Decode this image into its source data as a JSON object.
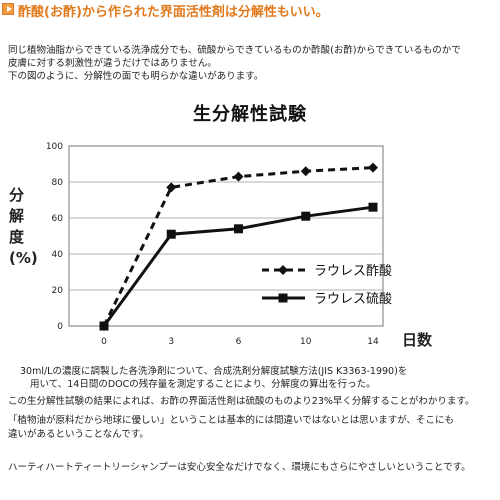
{
  "header": {
    "icon": "play-arrow-icon",
    "title": "酢酸(お酢)から作られた界面活性剤は分解性もいい。",
    "color": "#e07a1e"
  },
  "intro": [
    "同じ植物油脂からできている洗浄成分でも、硫酸からできているものか酢酸(お酢)からできているものかで",
    "皮膚に対する刺激性が違うだけではありません。",
    "下の図のように、分解性の面でも明らかな違いがあります。"
  ],
  "chart_data": {
    "type": "line",
    "title": "生分解性試験",
    "ylabel": "分解度(%)",
    "xlabel": "日数",
    "categories": [
      "0",
      "3",
      "6",
      "10",
      "14"
    ],
    "ylim": [
      0,
      100
    ],
    "yticks": [
      0,
      20,
      40,
      60,
      80,
      100
    ],
    "grid": true,
    "legend_position": "right",
    "series": [
      {
        "name": "ラウレス酢酸",
        "values": [
          0,
          77,
          83,
          86,
          88
        ],
        "style": "dashed",
        "marker": "diamond",
        "color": "#111111"
      },
      {
        "name": "ラウレス硫酸",
        "values": [
          0,
          51,
          54,
          61,
          66
        ],
        "style": "solid",
        "marker": "square",
        "color": "#111111"
      }
    ]
  },
  "method_note": [
    "30ml/Lの濃度に調製した各洗浄剤について、合成洗剤分解度試験方法(JIS K3363-1990)を",
    "用いて、14日間のDOCの残存量を測定することにより、分解度の算出を行った。"
  ],
  "conclusion": [
    "この生分解性試験の結果によれば、お酢の界面活性剤は硫酸のものより23%早く分解することがわかります。",
    "「植物油が原料だから地球に優しい」ということは基本的には間違いではないとは思いますが、そこにも",
    "違いがあるということなんです。",
    "ハーティハートティートリーシャンプーは安心安全なだけでなく、環境にもさらにやさしいということです。"
  ]
}
